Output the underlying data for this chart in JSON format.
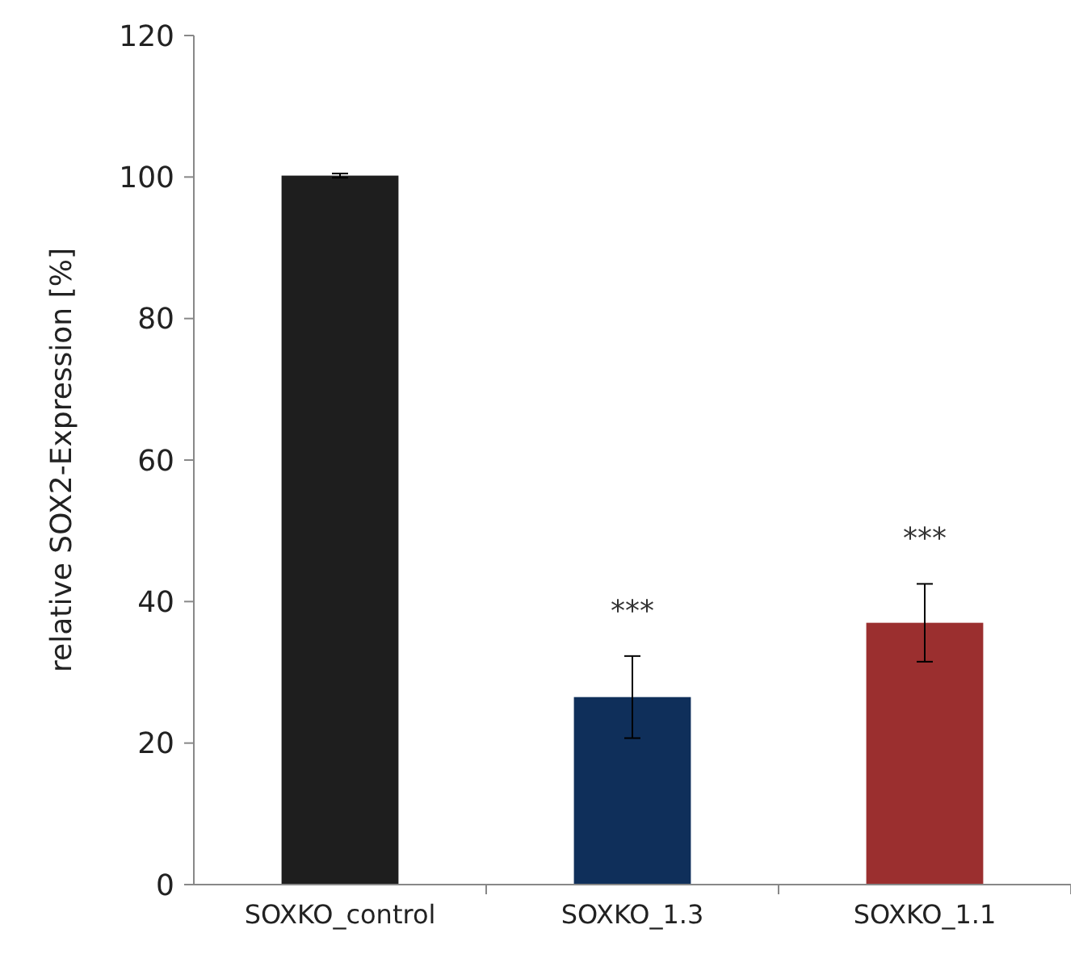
{
  "chart_data": {
    "type": "bar",
    "ylabel": "relative SOX2-Expression [%]",
    "categories": [
      "SOXKO_control",
      "SOXKO_1.3",
      "SOXKO_1.1"
    ],
    "values": [
      100.2,
      26.5,
      37
    ],
    "colors": [
      "#1e1e1e",
      "#0f2f5a",
      "#9b2f2f"
    ],
    "errors": [
      0.3,
      5.8,
      5.5
    ],
    "ylim": [
      0,
      120
    ],
    "yticks": [
      0,
      20,
      40,
      60,
      80,
      100,
      120
    ],
    "annotations": [
      "***",
      "***"
    ],
    "grid": false
  }
}
